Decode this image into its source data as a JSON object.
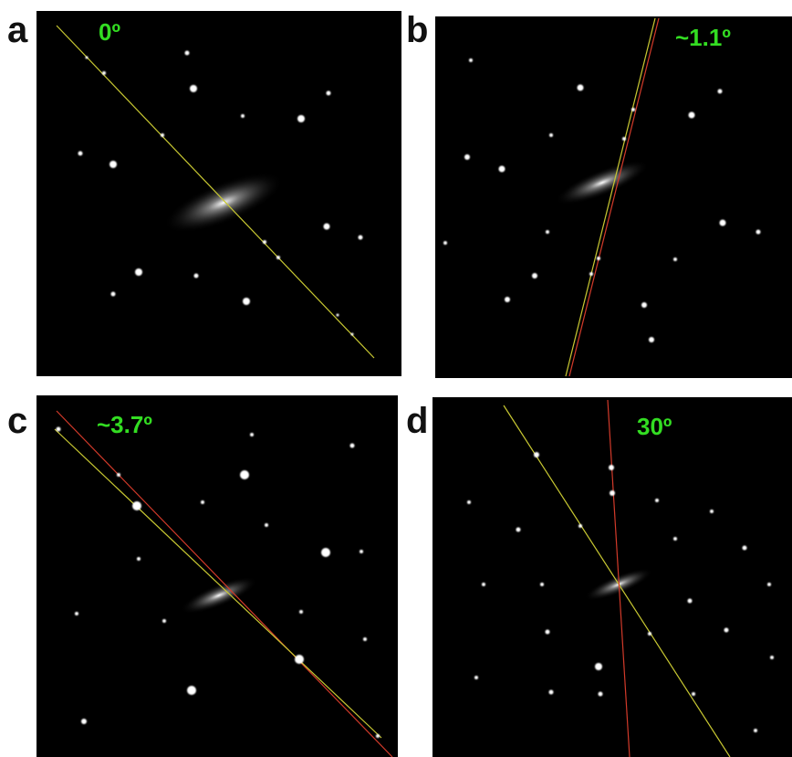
{
  "panels": [
    {
      "label": "a",
      "angle": "0º"
    },
    {
      "label": "b",
      "angle": "~1.1º"
    },
    {
      "label": "c",
      "angle": "~3.7º"
    },
    {
      "label": "d",
      "angle": "30º"
    }
  ]
}
